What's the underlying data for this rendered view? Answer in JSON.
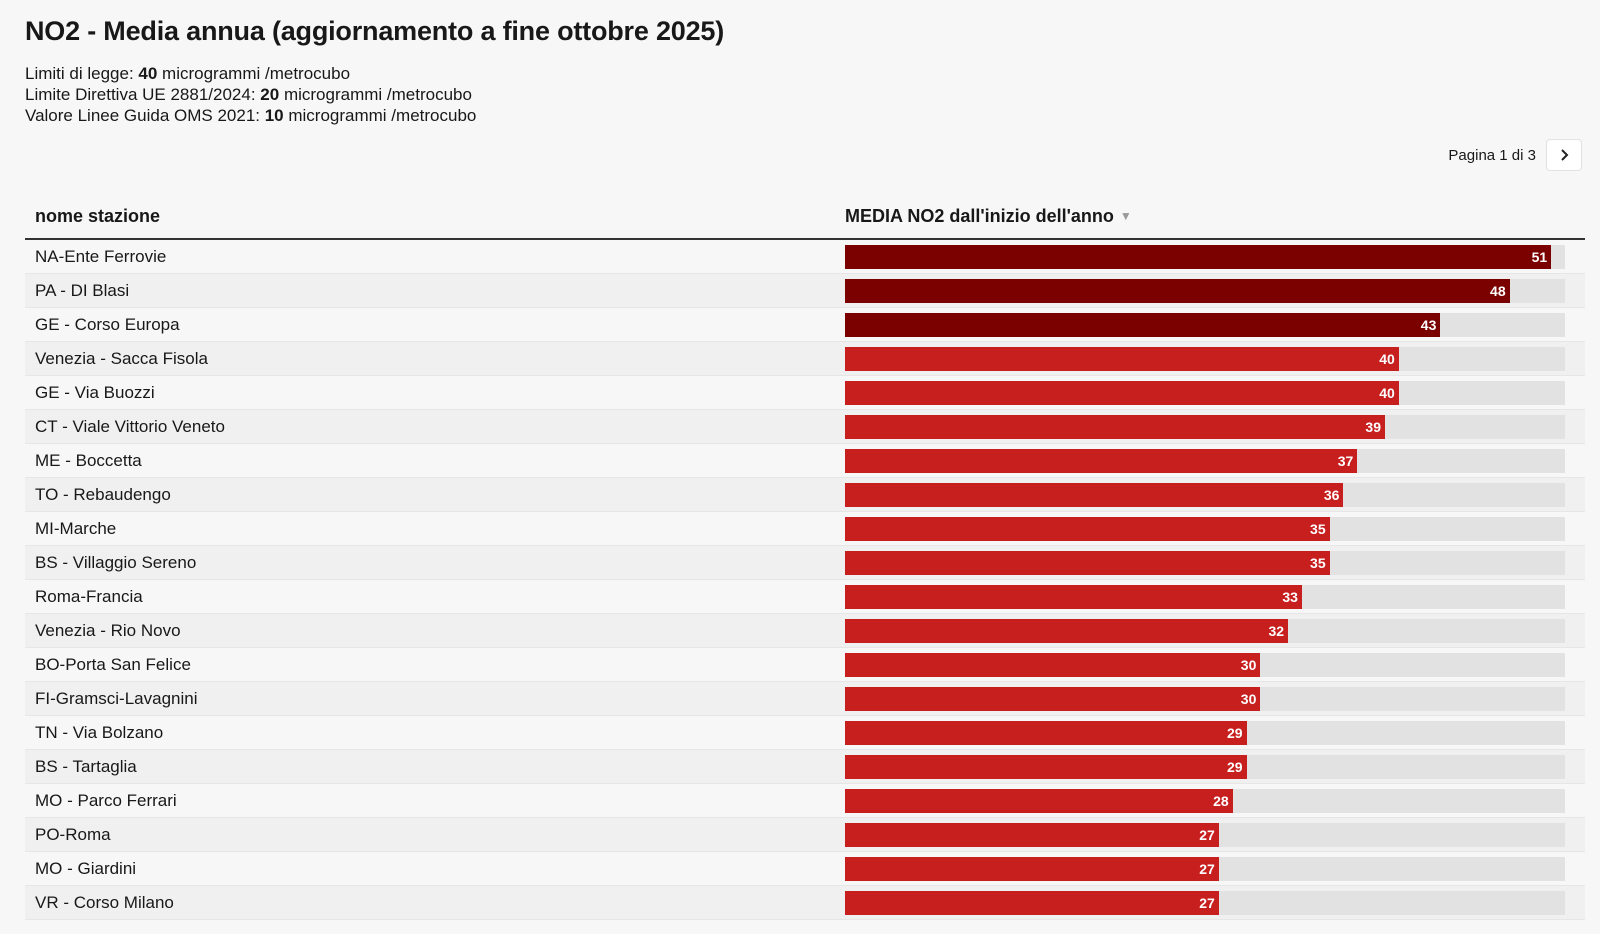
{
  "header": {
    "title": "NO2 - Media annua (aggiornamento a fine ottobre 2025)",
    "notes": [
      {
        "prefix": "Limiti di legge: ",
        "value": "40",
        "suffix": " microgrammi /metrocubo"
      },
      {
        "prefix": "Limite Direttiva UE 2881/2024: ",
        "value": "20",
        "suffix": " microgrammi /metrocubo"
      },
      {
        "prefix": "Valore Linee Guida OMS 2021: ",
        "value": "10",
        "suffix": " microgrammi /metrocubo"
      }
    ]
  },
  "pagination": {
    "label": "Pagina 1 di 3",
    "next_icon": "chevron-right-icon"
  },
  "colors": {
    "dark": "#7b0000",
    "bright": "#c71e1e",
    "track": "#e2e2e2"
  },
  "chart_data": {
    "type": "table",
    "columns": [
      "nome stazione",
      "MEDIA NO2 dall'inizio dell'anno"
    ],
    "sort": "descending",
    "xlim": [
      0,
      52
    ],
    "rows": [
      {
        "station": "NA-Ente Ferrovie",
        "value": 51
      },
      {
        "station": "PA - DI Blasi",
        "value": 48
      },
      {
        "station": "GE - Corso Europa",
        "value": 43
      },
      {
        "station": "Venezia - Sacca Fisola",
        "value": 40
      },
      {
        "station": "GE - Via Buozzi",
        "value": 40
      },
      {
        "station": "CT - Viale Vittorio Veneto",
        "value": 39
      },
      {
        "station": "ME - Boccetta",
        "value": 37
      },
      {
        "station": "TO - Rebaudengo",
        "value": 36
      },
      {
        "station": "MI-Marche",
        "value": 35
      },
      {
        "station": "BS - Villaggio Sereno",
        "value": 35
      },
      {
        "station": "Roma-Francia",
        "value": 33
      },
      {
        "station": "Venezia - Rio Novo",
        "value": 32
      },
      {
        "station": "BO-Porta San Felice",
        "value": 30
      },
      {
        "station": "FI-Gramsci-Lavagnini",
        "value": 30
      },
      {
        "station": "TN - Via Bolzano",
        "value": 29
      },
      {
        "station": "BS - Tartaglia",
        "value": 29
      },
      {
        "station": "MO - Parco Ferrari",
        "value": 28
      },
      {
        "station": "PO-Roma",
        "value": 27
      },
      {
        "station": "MO - Giardini",
        "value": 27
      },
      {
        "station": "VR - Corso Milano",
        "value": 27
      }
    ]
  }
}
